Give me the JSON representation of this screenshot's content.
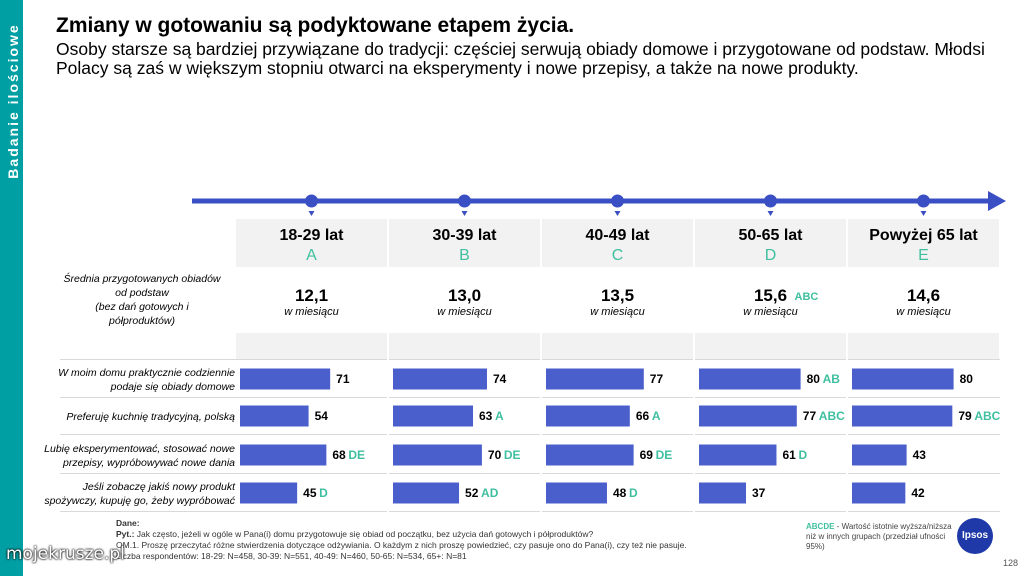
{
  "sidebar": {
    "label": "Badanie ilościowe"
  },
  "title": "Zmiany w gotowaniu są podyktowane etapem życia.",
  "subtitle": "Osoby starsze są bardziej przywiązane do tradycji: częściej serwują obiady domowe i przygotowane od podstaw. Młodsi Polacy są zaś w większym stopniu otwarci na eksperymenty i nowe przepisy, a także na nowe produkty.",
  "chart_data": {
    "type": "bar",
    "groups": [
      {
        "age": "18-29 lat",
        "letter": "A",
        "mean": "12,1",
        "mean_sig": ""
      },
      {
        "age": "30-39 lat",
        "letter": "B",
        "mean": "13,0",
        "mean_sig": ""
      },
      {
        "age": "40-49 lat",
        "letter": "C",
        "mean": "13,5",
        "mean_sig": ""
      },
      {
        "age": "50-65 lat",
        "letter": "D",
        "mean": "15,6",
        "mean_sig": "ABC"
      },
      {
        "age": "Powyżej 65 lat",
        "letter": "E",
        "mean": "14,6",
        "mean_sig": ""
      }
    ],
    "mean_label": [
      "Średnia przygotowanych obiadów",
      "od podstaw",
      "(bez dań gotowych i",
      "półproduktów)"
    ],
    "mean_unit": "w miesiącu",
    "rows": [
      {
        "label": [
          "W moim domu praktycznie codziennie",
          "podaje się obiady domowe"
        ],
        "values": [
          71,
          74,
          77,
          80,
          80
        ],
        "sig": [
          "",
          "",
          "",
          "AB",
          ""
        ]
      },
      {
        "label": [
          "Preferuję kuchnię tradycyjną, polską"
        ],
        "values": [
          54,
          63,
          66,
          77,
          79
        ],
        "sig": [
          "",
          "A",
          "A",
          "ABC",
          "ABC"
        ]
      },
      {
        "label": [
          "Lubię eksperymentować, stosować nowe",
          "przepisy, wypróbowywać nowe dania"
        ],
        "values": [
          68,
          70,
          69,
          61,
          43
        ],
        "sig": [
          "DE",
          "DE",
          "DE",
          "D",
          ""
        ]
      },
      {
        "label": [
          "Jeśli zobaczę jakiś nowy produkt",
          "spożywczy, kupuję go, żeby wypróbować"
        ],
        "values": [
          45,
          52,
          48,
          37,
          42
        ],
        "sig": [
          "D",
          "AD",
          "D",
          "",
          ""
        ]
      }
    ],
    "xlim": [
      0,
      100
    ],
    "colors": {
      "bar": "#4a5fcc",
      "sig": "#3fbf9f",
      "axis": "#3b4fc4",
      "header_bg": "#f2f2f2"
    }
  },
  "notes": {
    "dane_label": "Dane:",
    "pyt_label": "Pyt.:",
    "pyt_text": "Jak często, jeżeli w ogóle w Pana(i) domu przygotowuje się obiad od początku, bez użycia dań gotowych i półproduktów?",
    "om_text": "OM.1. Proszę przeczytać różne stwierdzenia dotyczące odżywiania. O każdym z nich proszę powiedzieć, czy pasuje ono do Pana(i), czy też nie pasuje.",
    "base_text": "Liczba respondentów: 18-29: N=458, 30-39: N=551, 40-49: N=460, 50-65: N=534, 65+: N=81"
  },
  "legend": {
    "key": "ABCDE",
    "text": " - Wartość istotnie wyższa/niższa niż w innych grupach (przedział ufności 95%)"
  },
  "logo": {
    "text": "Ipsos"
  },
  "page_number": "128",
  "watermark": "mojekrusze.pl"
}
